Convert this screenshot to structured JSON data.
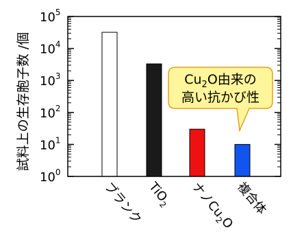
{
  "chart_data": {
    "type": "bar",
    "ylabel": "試料上の生存胞子数 /個",
    "yscale": "log",
    "ylim": [
      1,
      100000
    ],
    "yticks": [
      {
        "base": "10",
        "exp": "0",
        "value": 1
      },
      {
        "base": "10",
        "exp": "1",
        "value": 10
      },
      {
        "base": "10",
        "exp": "2",
        "value": 100
      },
      {
        "base": "10",
        "exp": "3",
        "value": 1000
      },
      {
        "base": "10",
        "exp": "4",
        "value": 10000
      },
      {
        "base": "10",
        "exp": "5",
        "value": 100000
      }
    ],
    "categories": [
      {
        "main": "ブランク",
        "label": "ブランク"
      },
      {
        "main": "TiO",
        "sub": "2",
        "label": "TiO2"
      },
      {
        "main": "ナノCu",
        "sub": "2",
        "tail": "O",
        "label": "ナノCu2O"
      },
      {
        "main": "複合体",
        "label": "複合体"
      }
    ],
    "values": [
      32000,
      3300,
      30,
      10
    ],
    "colors": {
      "ブランク": "#ffffff",
      "TiO2": "#1a1a1a",
      "ナノCu2O": "#ee1111",
      "複合体": "#1155ee"
    },
    "grid": false,
    "annotation": {
      "line1_pre": "Cu",
      "line1_sub": "2",
      "line1_post": "O由来の",
      "line2": "高い抗かび性",
      "fill": "#fff59a",
      "stroke": "#e0a020"
    }
  }
}
